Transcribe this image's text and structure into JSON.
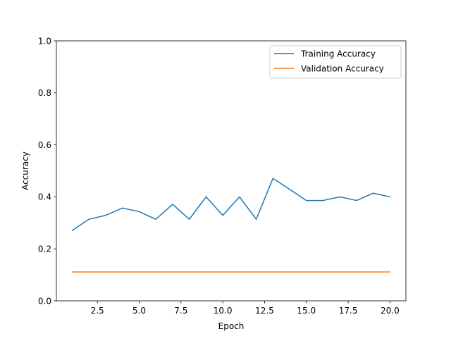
{
  "chart_data": {
    "type": "line",
    "title": "",
    "xlabel": "Epoch",
    "ylabel": "Accuracy",
    "xlim": [
      0.05,
      20.95
    ],
    "ylim": [
      0.0,
      1.0
    ],
    "x_ticks": [
      2.5,
      5.0,
      7.5,
      10.0,
      12.5,
      15.0,
      17.5,
      20.0
    ],
    "x_tick_labels": [
      "2.5",
      "5.0",
      "7.5",
      "10.0",
      "12.5",
      "15.0",
      "17.5",
      "20.0"
    ],
    "y_ticks": [
      0.0,
      0.2,
      0.4,
      0.6,
      0.8,
      1.0
    ],
    "y_tick_labels": [
      "0.0",
      "0.2",
      "0.4",
      "0.6",
      "0.8",
      "1.0"
    ],
    "grid": false,
    "legend_position": "top-right",
    "x": [
      1,
      2,
      3,
      4,
      5,
      6,
      7,
      8,
      9,
      10,
      11,
      12,
      13,
      14,
      15,
      16,
      17,
      18,
      19,
      20
    ],
    "series": [
      {
        "name": "Training Accuracy",
        "color": "#1f77b4",
        "values": [
          0.271,
          0.314,
          0.329,
          0.357,
          0.343,
          0.314,
          0.371,
          0.314,
          0.4,
          0.329,
          0.4,
          0.314,
          0.471,
          0.429,
          0.386,
          0.386,
          0.4,
          0.386,
          0.414,
          0.4
        ]
      },
      {
        "name": "Validation Accuracy",
        "color": "#ff7f0e",
        "values": [
          0.111,
          0.111,
          0.111,
          0.111,
          0.111,
          0.111,
          0.111,
          0.111,
          0.111,
          0.111,
          0.111,
          0.111,
          0.111,
          0.111,
          0.111,
          0.111,
          0.111,
          0.111,
          0.111,
          0.111
        ]
      }
    ]
  }
}
